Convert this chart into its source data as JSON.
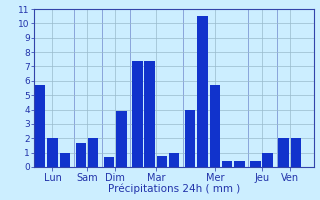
{
  "title": "",
  "xlabel": "Précipitations 24h ( mm )",
  "ylabel": "",
  "background_color": "#cceeff",
  "bar_color": "#1133cc",
  "grid_color": "#99bbcc",
  "axis_color": "#3344aa",
  "tick_color": "#2233aa",
  "ylim": [
    0,
    11
  ],
  "yticks": [
    0,
    1,
    2,
    3,
    4,
    5,
    6,
    7,
    8,
    9,
    10,
    11
  ],
  "day_labels": [
    "Lun",
    "Sam",
    "Dim",
    "Mar",
    "Mer",
    "Jeu",
    "Ven"
  ],
  "bars": [
    {
      "day": "Lun",
      "values": [
        5.7,
        2.0,
        1.0
      ]
    },
    {
      "day": "Sam",
      "values": [
        1.7,
        2.0
      ]
    },
    {
      "day": "Dim",
      "values": [
        0.7,
        3.9
      ]
    },
    {
      "day": "Mar",
      "values": [
        7.4,
        7.4,
        0.8,
        1.0
      ]
    },
    {
      "day": "Mer",
      "values": [
        4.0,
        10.5,
        5.7,
        0.4,
        0.4
      ]
    },
    {
      "day": "Jeu",
      "values": [
        0.4,
        1.0
      ]
    },
    {
      "day": "Ven",
      "values": [
        2.0,
        2.0
      ]
    }
  ],
  "xlabel_fontsize": 7.5,
  "tick_fontsize": 6.5,
  "label_fontsize": 7
}
